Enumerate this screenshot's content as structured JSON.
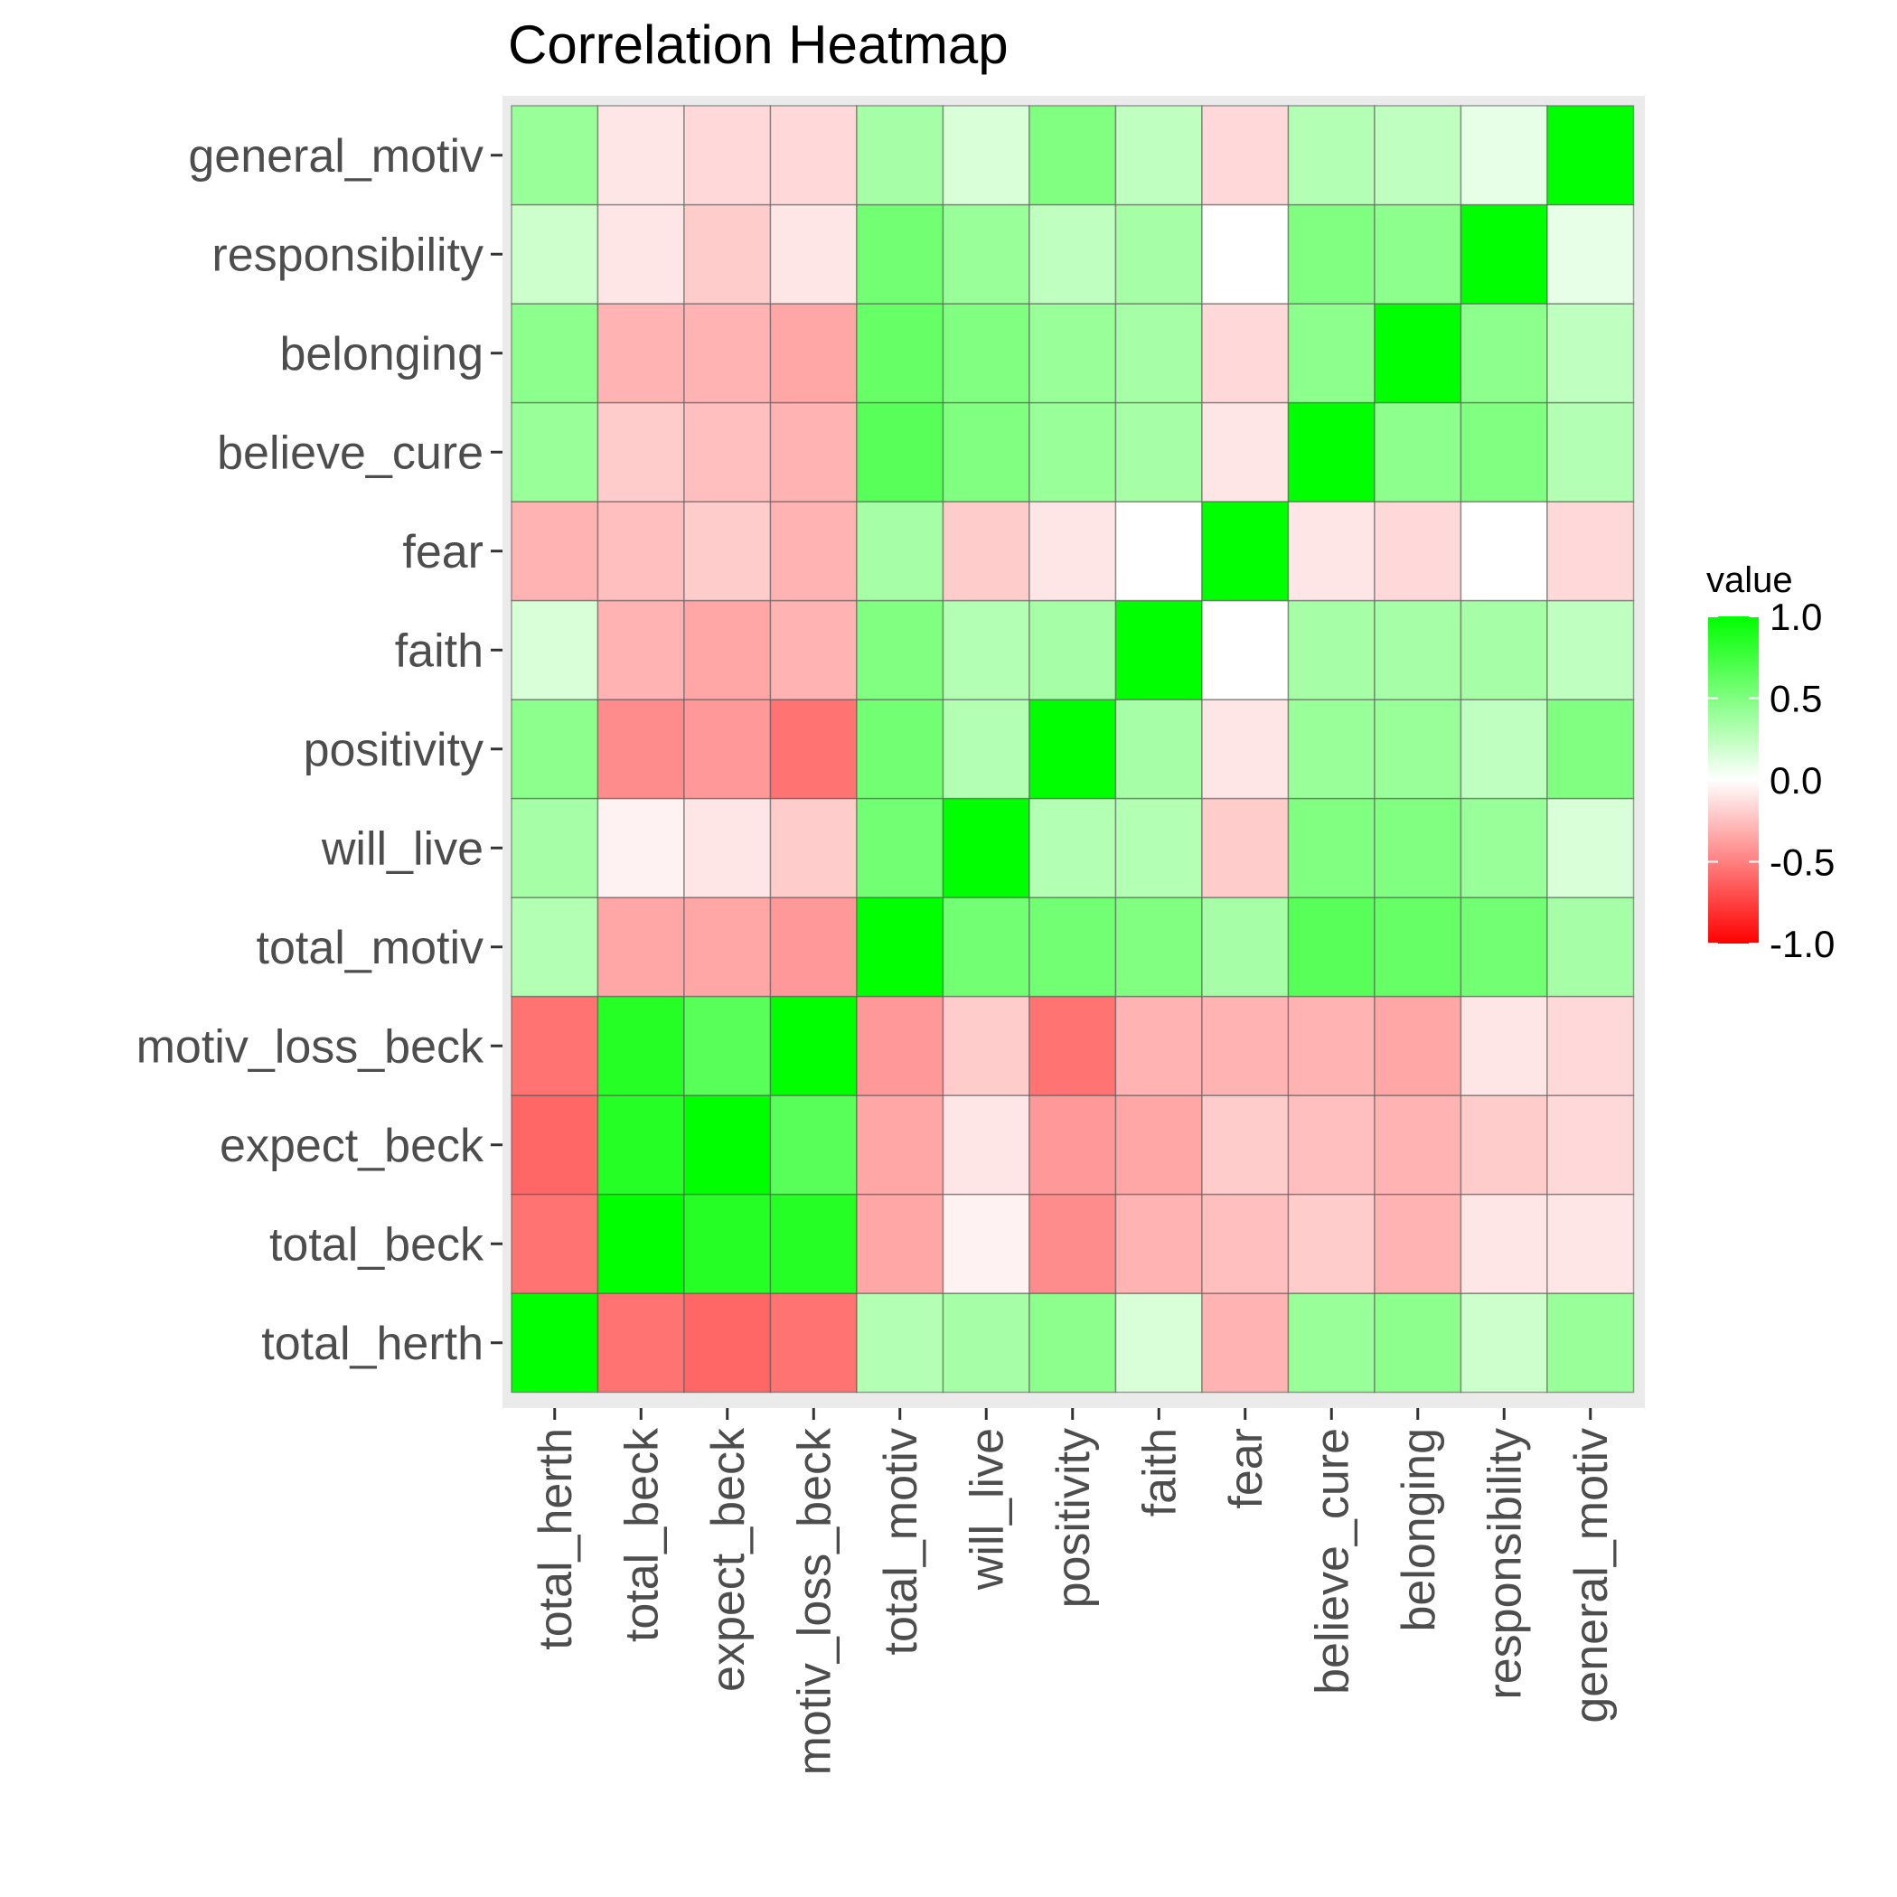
{
  "chart_data": {
    "type": "heatmap",
    "title": "Correlation Heatmap",
    "variables": [
      "total_herth",
      "total_beck",
      "expect_beck",
      "motiv_loss_beck",
      "total_motiv",
      "will_live",
      "positivity",
      "faith",
      "fear",
      "believe_cure",
      "belonging",
      "responsibility",
      "general_motiv"
    ],
    "matrix": [
      [
        1.0,
        -0.55,
        -0.6,
        -0.55,
        0.3,
        0.35,
        0.45,
        0.15,
        -0.3,
        0.4,
        0.45,
        0.2,
        0.4
      ],
      [
        -0.55,
        1.0,
        0.85,
        0.85,
        -0.35,
        -0.05,
        -0.45,
        -0.3,
        -0.25,
        -0.2,
        -0.3,
        -0.1,
        -0.1
      ],
      [
        -0.6,
        0.85,
        1.0,
        0.65,
        -0.35,
        -0.1,
        -0.4,
        -0.35,
        -0.2,
        -0.25,
        -0.3,
        -0.2,
        -0.15
      ],
      [
        -0.55,
        0.85,
        0.65,
        1.0,
        -0.4,
        -0.2,
        -0.55,
        -0.3,
        -0.3,
        -0.3,
        -0.35,
        -0.1,
        -0.15
      ],
      [
        0.3,
        -0.35,
        -0.35,
        -0.4,
        1.0,
        0.55,
        0.55,
        0.5,
        0.35,
        0.65,
        0.6,
        0.55,
        0.35
      ],
      [
        0.35,
        -0.05,
        -0.1,
        -0.2,
        0.55,
        1.0,
        0.3,
        0.3,
        -0.2,
        0.5,
        0.5,
        0.4,
        0.15
      ],
      [
        0.45,
        -0.45,
        -0.4,
        -0.55,
        0.55,
        0.3,
        1.0,
        0.35,
        -0.1,
        0.4,
        0.4,
        0.25,
        0.5
      ],
      [
        0.15,
        -0.3,
        -0.35,
        -0.3,
        0.5,
        0.3,
        0.35,
        1.0,
        0.0,
        0.35,
        0.35,
        0.35,
        0.25
      ],
      [
        -0.3,
        -0.25,
        -0.2,
        -0.3,
        0.35,
        -0.2,
        -0.1,
        0.0,
        1.0,
        -0.1,
        -0.15,
        0.0,
        -0.15
      ],
      [
        0.4,
        -0.2,
        -0.25,
        -0.3,
        0.65,
        0.5,
        0.4,
        0.35,
        -0.1,
        1.0,
        0.45,
        0.5,
        0.3
      ],
      [
        0.45,
        -0.3,
        -0.3,
        -0.35,
        0.6,
        0.5,
        0.4,
        0.35,
        -0.15,
        0.45,
        1.0,
        0.45,
        0.25
      ],
      [
        0.2,
        -0.1,
        -0.2,
        -0.1,
        0.55,
        0.4,
        0.25,
        0.35,
        0.0,
        0.5,
        0.45,
        1.0,
        0.1
      ],
      [
        0.4,
        -0.1,
        -0.15,
        -0.15,
        0.35,
        0.15,
        0.5,
        0.25,
        -0.15,
        0.3,
        0.25,
        0.1,
        1.0
      ]
    ],
    "legend": {
      "title": "value",
      "ticks": [
        1.0,
        0.5,
        0.0,
        -0.5,
        -1.0
      ],
      "tick_labels": [
        "1.0",
        "0.5",
        "0.0",
        "-0.5",
        "-1.0"
      ],
      "placement": "right"
    },
    "color_scale": {
      "low": "#ff0000",
      "mid": "#ffffff",
      "high": "#00ff00",
      "limits": [
        -1,
        1
      ]
    },
    "grid": true
  }
}
